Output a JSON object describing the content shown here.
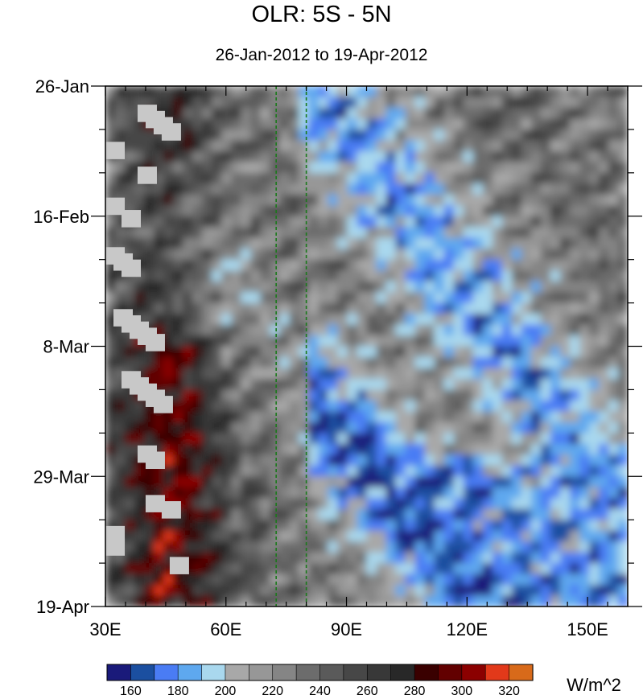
{
  "chart_data": {
    "type": "heatmap",
    "title": "OLR: 5S - 5N",
    "subtitle": "26-Jan-2012 to 19-Apr-2012",
    "xlabel": "",
    "ylabel": "",
    "x_ticks": [
      {
        "value": 30,
        "label": "30E"
      },
      {
        "value": 60,
        "label": "60E"
      },
      {
        "value": 90,
        "label": "90E"
      },
      {
        "value": 120,
        "label": "120E"
      },
      {
        "value": 150,
        "label": "150E"
      }
    ],
    "y_ticks": [
      {
        "day": 0,
        "label": "26-Jan"
      },
      {
        "day": 21,
        "label": "16-Feb"
      },
      {
        "day": 42,
        "label": "8-Mar"
      },
      {
        "day": 63,
        "label": "29-Mar"
      },
      {
        "day": 84,
        "label": "19-Apr"
      }
    ],
    "xlim": [
      30,
      160
    ],
    "ylim_days": [
      0,
      84
    ],
    "reference_lines_lon": [
      72.5,
      80
    ],
    "colorbar": {
      "unit": "W/m^2",
      "levels": [
        160,
        170,
        180,
        190,
        200,
        210,
        220,
        230,
        240,
        250,
        260,
        270,
        280,
        290,
        300,
        310,
        320,
        330
      ],
      "labels": [
        "160",
        "180",
        "200",
        "220",
        "240",
        "260",
        "280",
        "300",
        "320"
      ],
      "colors": [
        "#1a1a7a",
        "#1b4fa0",
        "#4a7cf4",
        "#5ea8ef",
        "#a9d8ee",
        "#a8a8a8",
        "#979797",
        "#858585",
        "#6c6c6c",
        "#5a5a5a",
        "#474747",
        "#383838",
        "#282828",
        "#3a0000",
        "#620000",
        "#8b0000",
        "#e2391a",
        "#d86a1a"
      ]
    }
  }
}
